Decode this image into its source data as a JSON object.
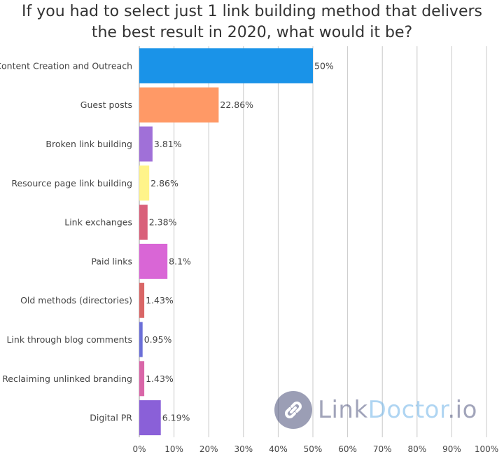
{
  "chart_data": {
    "type": "bar",
    "orientation": "horizontal",
    "title": "If you had to select just 1 link building method that delivers the best result in 2020, what would it be?",
    "title_lines": [
      "If you had to select just 1 link building method that delivers",
      "the best result in 2020, what would it be?"
    ],
    "categories": [
      "Content Creation and Outreach",
      "Guest posts",
      "Broken link building",
      "Resource page link building",
      "Link exchanges",
      "Paid links",
      "Old methods (directories)",
      "Link through blog comments",
      "Reclaiming unlinked branding",
      "Digital PR"
    ],
    "values": [
      50,
      22.86,
      3.81,
      2.86,
      2.38,
      8.1,
      1.43,
      0.95,
      1.43,
      6.19
    ],
    "data_labels": [
      "50%",
      "22.86%",
      "3.81%",
      "2.86%",
      "2.38%",
      "8.1%",
      "1.43%",
      "0.95%",
      "1.43%",
      "6.19%"
    ],
    "colors": [
      "#1a93e8",
      "#ff9966",
      "#a070d8",
      "#fff48a",
      "#d9607a",
      "#d966d6",
      "#d96666",
      "#6b6fd8",
      "#d966a8",
      "#8a60d8"
    ],
    "xlim": [
      0,
      100
    ],
    "x_ticks": [
      "0%",
      "10%",
      "20%",
      "30%",
      "40%",
      "50%",
      "60%",
      "70%",
      "80%",
      "90%",
      "100%"
    ],
    "grid": true,
    "xlabel": "",
    "ylabel": ""
  },
  "watermark": {
    "brand_part1": "Link",
    "brand_part2": "Doctor",
    "brand_part3": ".io",
    "icon": "link-chain-icon"
  }
}
